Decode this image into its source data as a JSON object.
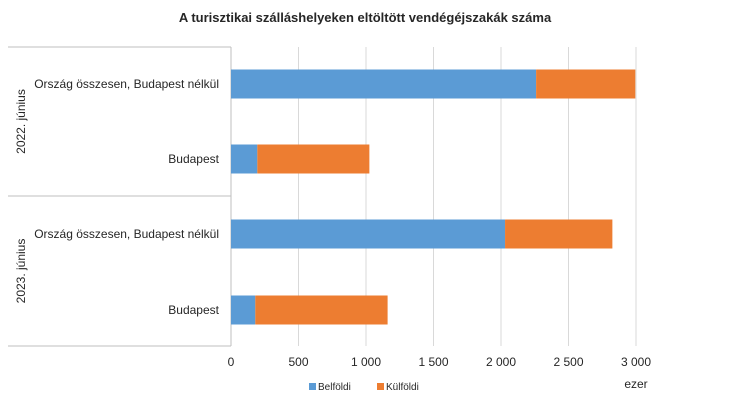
{
  "chart_data": {
    "type": "bar",
    "orientation": "horizontal",
    "stacked": true,
    "title": "A turisztikai szálláshelyeken eltöltött vendégéjszakák száma",
    "x_unit_label": "ezer",
    "xlim": [
      0,
      3000
    ],
    "x_ticks": [
      "0",
      "500",
      "1 000",
      "1 500",
      "2 000",
      "2 500",
      "3 000"
    ],
    "grid": true,
    "legend_position": "bottom",
    "groups": [
      {
        "label": "2022. június",
        "categories": [
          "Ország összesen, Budapest nélkül",
          "Budapest"
        ]
      },
      {
        "label": "2023. június",
        "categories": [
          "Ország összesen, Budapest nélkül",
          "Budapest"
        ]
      }
    ],
    "categories": [
      "Ország összesen, Budapest nélkül",
      "Budapest",
      "Ország összesen, Budapest nélkül",
      "Budapest"
    ],
    "series": [
      {
        "name": "Belföldi",
        "color": "#5B9BD5",
        "values": [
          2260,
          195,
          2030,
          180
        ]
      },
      {
        "name": "Külföldi",
        "color": "#ED7D31",
        "values": [
          735,
          830,
          795,
          980
        ]
      }
    ]
  }
}
